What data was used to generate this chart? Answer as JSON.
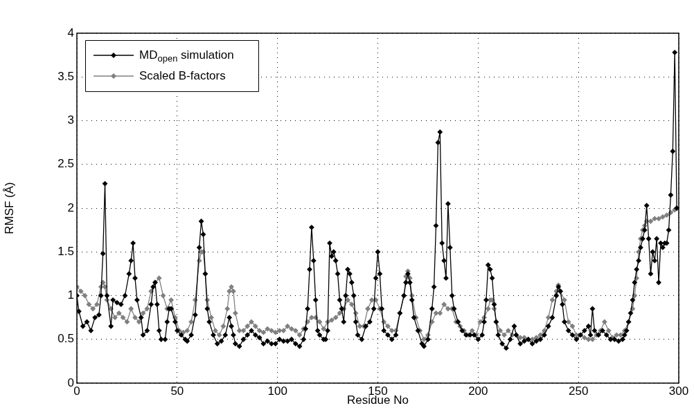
{
  "chart_data": {
    "type": "line",
    "xlabel": "Residue No",
    "ylabel": "RMSF (Å)",
    "xlim": [
      0,
      300
    ],
    "xticks": [
      0,
      50,
      100,
      150,
      200,
      250,
      300
    ],
    "ylim": [
      0,
      4
    ],
    "yticks": [
      0,
      0.5,
      1,
      1.5,
      2,
      2.5,
      3,
      3.5,
      4
    ],
    "grid": true,
    "legend": "top left",
    "marker": "diamond",
    "line_style": "solid",
    "series": [
      {
        "name": "MD$_{open}$ simulation",
        "color": "#000000",
        "x": [
          0,
          1,
          3,
          5,
          7,
          9,
          11,
          12,
          13,
          14,
          15,
          17,
          18,
          20,
          22,
          24,
          26,
          27,
          28,
          29,
          30,
          32,
          33,
          35,
          37,
          38,
          39,
          40,
          41,
          42,
          44,
          45,
          46,
          47,
          49,
          50,
          52,
          54,
          55,
          57,
          59,
          61,
          62,
          63,
          64,
          65,
          66,
          68,
          70,
          72,
          74,
          76,
          77,
          78,
          79,
          81,
          83,
          85,
          87,
          89,
          91,
          93,
          95,
          97,
          99,
          101,
          103,
          105,
          107,
          109,
          111,
          113,
          114,
          115,
          116,
          117,
          118,
          119,
          120,
          121,
          123,
          124,
          125,
          126,
          127,
          128,
          129,
          130,
          131,
          132,
          133,
          134,
          135,
          136,
          137,
          138,
          139,
          140,
          142,
          144,
          146,
          148,
          149,
          150,
          151,
          152,
          153,
          155,
          157,
          159,
          161,
          163,
          164,
          165,
          166,
          167,
          168,
          170,
          172,
          173,
          175,
          177,
          178,
          179,
          180,
          181,
          182,
          183,
          184,
          185,
          186,
          187,
          188,
          190,
          192,
          194,
          196,
          198,
          200,
          202,
          203,
          204,
          205,
          206,
          207,
          208,
          209,
          210,
          212,
          214,
          216,
          218,
          219,
          221,
          223,
          225,
          227,
          229,
          231,
          233,
          235,
          237,
          239,
          240,
          241,
          242,
          243,
          245,
          247,
          249,
          251,
          253,
          255,
          256,
          257,
          258,
          260,
          262,
          264,
          266,
          268,
          270,
          272,
          273,
          274,
          275,
          276,
          277,
          278,
          279,
          280,
          281,
          282,
          283,
          284,
          285,
          286,
          287,
          288,
          289,
          290,
          291,
          292,
          293,
          294,
          295,
          296,
          297,
          298,
          299
        ],
        "values": [
          1.0,
          0.82,
          0.65,
          0.7,
          0.6,
          0.75,
          0.78,
          1.0,
          1.48,
          2.28,
          1.0,
          0.65,
          0.95,
          0.92,
          0.9,
          1.0,
          1.25,
          1.4,
          1.6,
          1.2,
          0.95,
          0.75,
          0.55,
          0.6,
          0.9,
          1.1,
          1.15,
          0.9,
          0.6,
          0.5,
          0.5,
          0.7,
          0.85,
          0.85,
          0.7,
          0.6,
          0.55,
          0.5,
          0.48,
          0.55,
          0.78,
          1.55,
          1.85,
          1.7,
          1.25,
          0.85,
          0.7,
          0.55,
          0.45,
          0.48,
          0.55,
          0.75,
          0.65,
          0.55,
          0.45,
          0.42,
          0.5,
          0.55,
          0.6,
          0.55,
          0.52,
          0.45,
          0.48,
          0.45,
          0.45,
          0.5,
          0.48,
          0.48,
          0.5,
          0.45,
          0.42,
          0.5,
          0.62,
          0.85,
          1.3,
          1.78,
          1.4,
          0.95,
          0.6,
          0.55,
          0.5,
          0.5,
          0.6,
          1.6,
          1.45,
          1.5,
          1.4,
          1.25,
          0.95,
          0.85,
          0.7,
          1.0,
          1.3,
          1.25,
          1.15,
          1.0,
          0.7,
          0.55,
          0.5,
          0.65,
          0.7,
          0.85,
          1.2,
          1.5,
          1.25,
          0.85,
          0.6,
          0.55,
          0.5,
          0.55,
          0.8,
          1.0,
          1.15,
          1.25,
          1.15,
          0.95,
          0.75,
          0.6,
          0.45,
          0.42,
          0.5,
          0.85,
          1.1,
          1.8,
          2.75,
          2.87,
          1.6,
          1.4,
          1.2,
          2.05,
          1.55,
          1.0,
          0.85,
          0.7,
          0.6,
          0.55,
          0.55,
          0.55,
          0.5,
          0.55,
          0.7,
          0.95,
          1.35,
          1.3,
          1.2,
          0.9,
          0.7,
          0.55,
          0.45,
          0.4,
          0.5,
          0.65,
          0.55,
          0.45,
          0.48,
          0.5,
          0.45,
          0.48,
          0.5,
          0.55,
          0.65,
          0.75,
          1.0,
          1.1,
          1.05,
          0.9,
          0.7,
          0.6,
          0.55,
          0.5,
          0.55,
          0.6,
          0.65,
          0.55,
          0.85,
          0.6,
          0.55,
          0.6,
          0.55,
          0.5,
          0.5,
          0.48,
          0.5,
          0.55,
          0.6,
          0.7,
          0.8,
          0.95,
          1.15,
          1.3,
          1.4,
          1.55,
          1.65,
          1.75,
          2.03,
          1.65,
          1.25,
          1.5,
          1.4,
          1.65,
          1.15,
          1.6,
          1.55,
          1.6,
          1.6,
          1.75,
          2.15,
          2.65,
          3.78,
          2.0
        ]
      },
      {
        "name": "Scaled B-factors",
        "color": "#808080",
        "x": [
          0,
          2,
          4,
          6,
          8,
          10,
          12,
          13,
          14,
          15,
          17,
          19,
          21,
          23,
          25,
          27,
          29,
          31,
          33,
          35,
          37,
          39,
          41,
          43,
          45,
          47,
          49,
          51,
          53,
          55,
          57,
          59,
          61,
          62,
          63,
          64,
          65,
          67,
          69,
          71,
          73,
          75,
          76,
          77,
          78,
          79,
          81,
          83,
          85,
          87,
          89,
          91,
          93,
          95,
          97,
          99,
          101,
          103,
          105,
          107,
          109,
          111,
          113,
          115,
          117,
          119,
          121,
          123,
          125,
          127,
          129,
          131,
          133,
          135,
          137,
          139,
          141,
          143,
          145,
          147,
          149,
          151,
          153,
          155,
          157,
          159,
          161,
          163,
          164,
          165,
          166,
          167,
          169,
          171,
          173,
          175,
          177,
          179,
          181,
          183,
          185,
          187,
          189,
          191,
          193,
          195,
          197,
          199,
          201,
          203,
          205,
          206,
          207,
          208,
          209,
          211,
          213,
          215,
          217,
          219,
          221,
          223,
          225,
          227,
          229,
          231,
          233,
          235,
          237,
          239,
          240,
          241,
          243,
          245,
          247,
          249,
          251,
          253,
          255,
          257,
          259,
          261,
          263,
          265,
          267,
          269,
          271,
          273,
          275,
          277,
          278,
          279,
          280,
          281,
          282,
          283,
          284,
          286,
          288,
          290,
          292,
          294,
          296,
          298,
          299
        ],
        "values": [
          1.1,
          1.05,
          1.0,
          0.9,
          0.85,
          0.9,
          1.1,
          1.15,
          1.1,
          0.95,
          0.85,
          0.75,
          0.8,
          0.75,
          0.7,
          0.85,
          0.75,
          0.7,
          0.8,
          0.85,
          1.05,
          1.15,
          1.2,
          1.0,
          0.85,
          0.95,
          0.75,
          0.6,
          0.58,
          0.6,
          0.7,
          0.95,
          1.4,
          1.5,
          1.5,
          1.25,
          0.95,
          0.75,
          0.6,
          0.55,
          0.65,
          0.85,
          1.05,
          1.1,
          1.05,
          0.8,
          0.6,
          0.6,
          0.65,
          0.7,
          0.65,
          0.6,
          0.58,
          0.62,
          0.6,
          0.58,
          0.6,
          0.6,
          0.65,
          0.62,
          0.6,
          0.55,
          0.62,
          0.7,
          0.75,
          0.75,
          0.7,
          0.62,
          0.7,
          0.72,
          0.75,
          0.8,
          0.85,
          0.95,
          0.9,
          0.8,
          0.65,
          0.65,
          0.85,
          0.95,
          0.95,
          0.85,
          0.7,
          0.65,
          0.6,
          0.6,
          0.8,
          1.0,
          1.22,
          1.28,
          1.2,
          1.0,
          0.75,
          0.6,
          0.5,
          0.55,
          0.7,
          0.8,
          0.8,
          0.9,
          0.85,
          0.85,
          0.7,
          0.65,
          0.6,
          0.55,
          0.6,
          0.55,
          0.7,
          0.75,
          0.85,
          0.95,
          0.95,
          0.85,
          0.7,
          0.6,
          0.55,
          0.6,
          0.55,
          0.55,
          0.52,
          0.52,
          0.5,
          0.5,
          0.52,
          0.55,
          0.6,
          0.75,
          0.95,
          1.05,
          1.12,
          1.05,
          0.95,
          0.7,
          0.65,
          0.55,
          0.55,
          0.52,
          0.5,
          0.5,
          0.55,
          0.6,
          0.7,
          0.6,
          0.52,
          0.55,
          0.55,
          0.6,
          0.7,
          0.85,
          1.0,
          1.2,
          1.5,
          1.65,
          1.75,
          1.8,
          1.85,
          1.85,
          1.88,
          1.88,
          1.9,
          1.92,
          1.95,
          1.98,
          2.0
        ]
      }
    ]
  }
}
